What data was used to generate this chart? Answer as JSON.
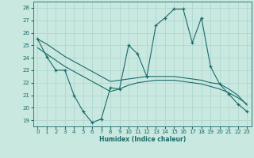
{
  "xlabel": "Humidex (Indice chaleur)",
  "xlim": [
    -0.5,
    23.5
  ],
  "ylim": [
    18.5,
    28.5
  ],
  "yticks": [
    19,
    20,
    21,
    22,
    23,
    24,
    25,
    26,
    27,
    28
  ],
  "xticks": [
    0,
    1,
    2,
    3,
    4,
    5,
    6,
    7,
    8,
    9,
    10,
    11,
    12,
    13,
    14,
    15,
    16,
    17,
    18,
    19,
    20,
    21,
    22,
    23
  ],
  "bg_color": "#c8e8e0",
  "grid_color": "#b0d8d0",
  "line_color": "#1a6b6b",
  "line1": [
    25.5,
    24.1,
    23.0,
    23.0,
    21.0,
    19.7,
    18.8,
    19.1,
    21.6,
    21.5,
    25.0,
    24.3,
    22.5,
    26.6,
    27.2,
    27.9,
    27.9,
    25.2,
    27.2,
    23.3,
    21.9,
    21.1,
    20.3,
    19.7
  ],
  "line2": [
    24.8,
    24.3,
    23.8,
    23.3,
    22.9,
    22.5,
    22.1,
    21.7,
    21.3,
    21.5,
    21.8,
    22.0,
    22.1,
    22.2,
    22.2,
    22.2,
    22.1,
    22.0,
    21.9,
    21.7,
    21.5,
    21.2,
    20.8,
    20.3
  ],
  "line3": [
    25.5,
    25.1,
    24.6,
    24.1,
    23.7,
    23.3,
    22.9,
    22.5,
    22.1,
    22.2,
    22.3,
    22.4,
    22.5,
    22.5,
    22.5,
    22.5,
    22.4,
    22.3,
    22.2,
    22.0,
    21.9,
    21.5,
    21.0,
    20.2
  ]
}
